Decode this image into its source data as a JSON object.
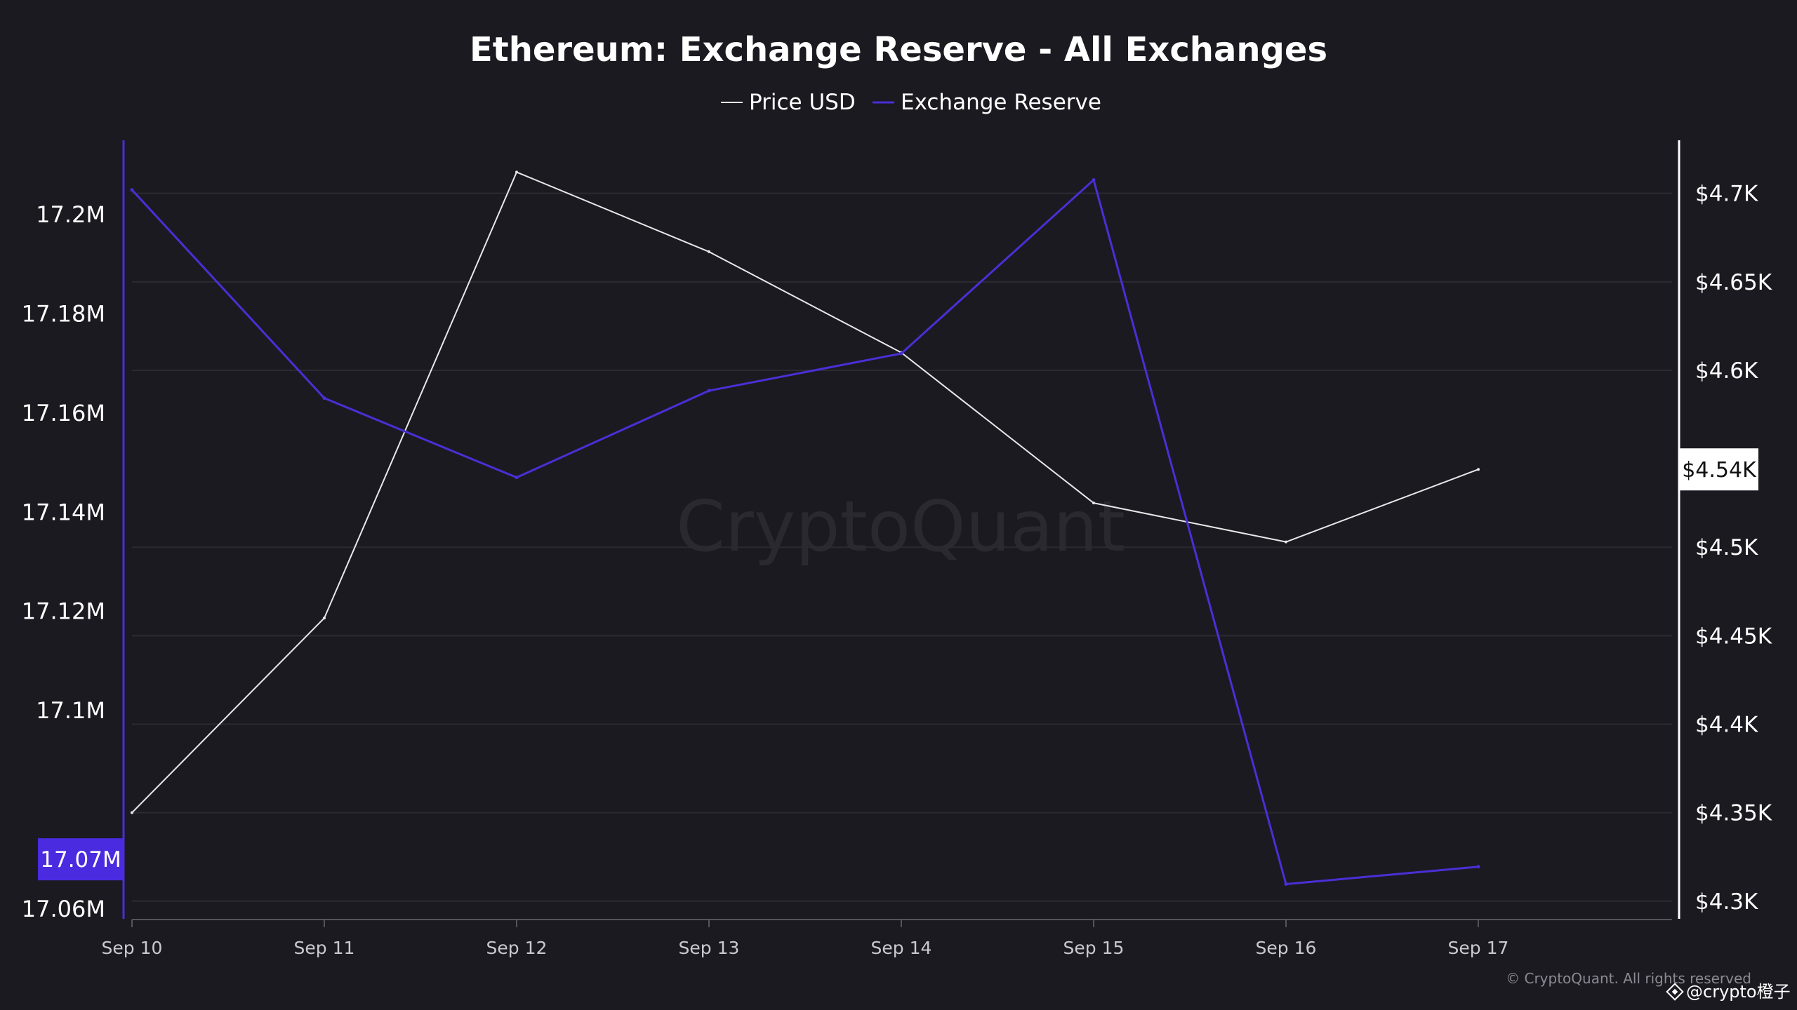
{
  "colors": {
    "background": "#1b1a20",
    "grid": "#2b2a31",
    "price_line": "#e8e8ea",
    "reserve_line": "#4a2fd6",
    "reserve_badge": "#4a2be0",
    "price_badge": "#ffffff",
    "left_axis": "#4a2fd6",
    "right_axis": "#ffffff"
  },
  "chart_data": {
    "type": "line",
    "title": "Ethereum: Exchange Reserve - All Exchanges",
    "categories": [
      "Sep 10",
      "Sep 11",
      "Sep 12",
      "Sep 13",
      "Sep 14",
      "Sep 15",
      "Sep 16",
      "Sep 17"
    ],
    "series": [
      {
        "name": "Price USD",
        "axis": "right",
        "values": [
          4350,
          4460,
          4712,
          4667,
          4610,
          4525,
          4503,
          4544
        ]
      },
      {
        "name": "Exchange Reserve",
        "axis": "left",
        "values": [
          17205000,
          17163000,
          17147000,
          17164500,
          17172000,
          17207000,
          17065000,
          17068500
        ]
      }
    ],
    "y_left": {
      "range": [
        17058000,
        17215000
      ],
      "ticks": [
        17060000,
        17100000,
        17120000,
        17140000,
        17160000,
        17180000,
        17200000
      ],
      "tick_labels": [
        "17.06M",
        "17.1M",
        "17.12M",
        "17.14M",
        "17.16M",
        "17.18M",
        "17.2M"
      ]
    },
    "y_right": {
      "range": [
        4290,
        4730
      ],
      "ticks": [
        4300,
        4350,
        4400,
        4450,
        4500,
        4600,
        4650,
        4700
      ],
      "tick_labels": [
        "$4.3K",
        "$4.35K",
        "$4.4K",
        "$4.45K",
        "$4.5K",
        "$4.6K",
        "$4.65K",
        "$4.7K"
      ]
    },
    "current_values": {
      "reserve_label": "17.07M",
      "reserve_value": 17070000,
      "price_label": "$4.54K",
      "price_value": 4544
    },
    "watermark": "CryptoQuant",
    "copyright": "© CryptoQuant. All rights reserved",
    "legend_position": "top-center"
  },
  "attribution": {
    "handle": "@crypto橙子"
  }
}
